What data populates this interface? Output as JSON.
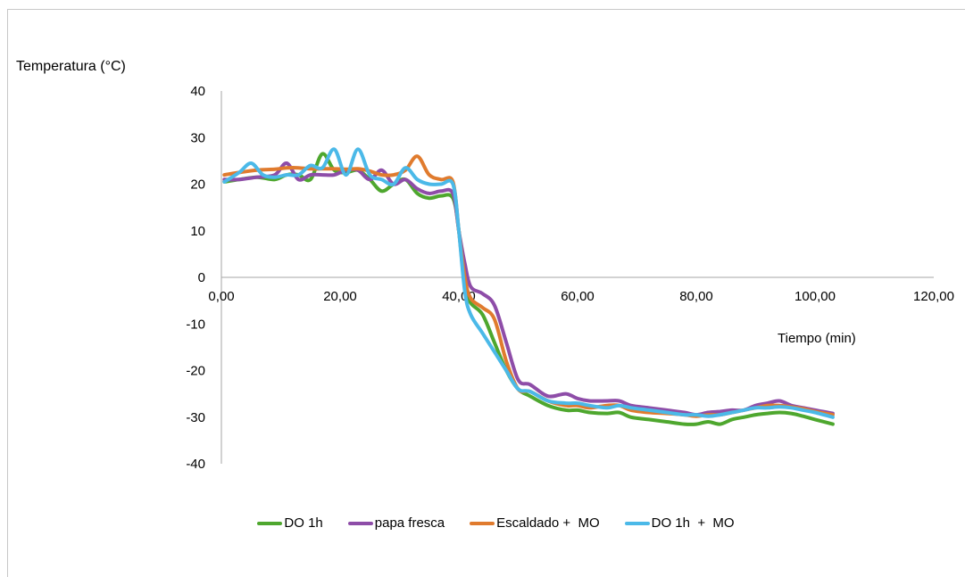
{
  "chart_data": {
    "type": "line",
    "ylabel": "Temperatura (°C)",
    "xlabel": "Tiempo (min)",
    "xlim": [
      0,
      120
    ],
    "ylim": [
      -40,
      40
    ],
    "x_ticks": [
      "0,00",
      "20,00",
      "40,00",
      "60,00",
      "80,00",
      "100,00",
      "120,00"
    ],
    "x_tick_values": [
      0,
      20,
      40,
      60,
      80,
      100,
      120
    ],
    "y_ticks": [
      "40",
      "30",
      "20",
      "10",
      "0",
      "-10",
      "-20",
      "-30",
      "-40"
    ],
    "y_tick_values": [
      40,
      30,
      20,
      10,
      0,
      -10,
      -20,
      -30,
      -40
    ],
    "grid": false,
    "legend_position": "bottom",
    "series": [
      {
        "name": "DO 1h",
        "color": "#4ea72e",
        "x": [
          0.5,
          3,
          6,
          9,
          11,
          13,
          15,
          17,
          19,
          21,
          23,
          25,
          27,
          29,
          31,
          33,
          35,
          37,
          39,
          40,
          41,
          42,
          44,
          46,
          48,
          50,
          52,
          55,
          58,
          60,
          62,
          65,
          67,
          69,
          72,
          75,
          78,
          80,
          82,
          84,
          86,
          88,
          90,
          92,
          94,
          96,
          98,
          100,
          103
        ],
        "y": [
          20.5,
          21,
          21.5,
          21,
          22,
          22,
          21,
          26.5,
          23,
          22.5,
          23,
          21,
          18.5,
          20,
          21,
          18,
          17,
          17.5,
          17,
          10,
          -2,
          -5.5,
          -8,
          -14,
          -20,
          -24,
          -25.5,
          -27.5,
          -28.5,
          -28.5,
          -29,
          -29.2,
          -29,
          -30,
          -30.5,
          -31,
          -31.5,
          -31.5,
          -31,
          -31.5,
          -30.5,
          -30,
          -29.5,
          -29.2,
          -29,
          -29.2,
          -29.8,
          -30.5,
          -31.5
        ]
      },
      {
        "name": "papa fresca",
        "color": "#8e4da8",
        "x": [
          0.5,
          3,
          6,
          9,
          11,
          13,
          15,
          17,
          19,
          21,
          23,
          25,
          27,
          29,
          31,
          33,
          35,
          37,
          39,
          40,
          41,
          42,
          44,
          46,
          48,
          50,
          52,
          55,
          58,
          60,
          62,
          65,
          67,
          69,
          72,
          75,
          78,
          80,
          82,
          84,
          86,
          88,
          90,
          92,
          94,
          96,
          98,
          100,
          103
        ],
        "y": [
          21,
          21,
          21.5,
          22,
          24.5,
          21,
          22,
          22,
          22,
          23,
          23,
          21,
          23,
          20,
          21,
          19,
          18,
          18.5,
          18,
          10,
          3,
          -2,
          -3.5,
          -6,
          -14,
          -22,
          -23,
          -25.5,
          -25,
          -26,
          -26.5,
          -26.5,
          -26.5,
          -27.5,
          -28,
          -28.5,
          -29,
          -29.5,
          -29,
          -28.8,
          -28.5,
          -28.5,
          -27.5,
          -27,
          -26.5,
          -27.5,
          -28,
          -28.5,
          -29.2
        ]
      },
      {
        "name": "Escaldado +  MO",
        "color": "#e07b2e",
        "x": [
          0.5,
          3,
          6,
          9,
          11,
          13,
          15,
          17,
          19,
          21,
          23,
          25,
          27,
          29,
          31,
          33,
          35,
          37,
          39,
          40,
          41,
          42,
          44,
          46,
          48,
          50,
          52,
          55,
          58,
          60,
          62,
          65,
          67,
          69,
          72,
          75,
          78,
          80,
          82,
          84,
          86,
          88,
          90,
          92,
          94,
          96,
          98,
          100,
          103
        ],
        "y": [
          22,
          22.5,
          23,
          23.2,
          23.5,
          23.5,
          23.3,
          23.3,
          23.3,
          23.2,
          23.3,
          22.8,
          22,
          22,
          23,
          26,
          22,
          21,
          20.5,
          10,
          0,
          -4.5,
          -6.5,
          -9,
          -18,
          -24,
          -24.5,
          -26.5,
          -27.5,
          -27.5,
          -28,
          -27.5,
          -27.5,
          -28.5,
          -29,
          -29.2,
          -29.5,
          -29.8,
          -29.5,
          -29.5,
          -29,
          -28.5,
          -28,
          -27.5,
          -27.5,
          -27.8,
          -28.2,
          -28.8,
          -29.5
        ]
      },
      {
        "name": "DO 1h  +  MO",
        "color": "#4bb9e8",
        "x": [
          0.5,
          3,
          5,
          7,
          9,
          11,
          13,
          15,
          17,
          19,
          21,
          23,
          25,
          27,
          29,
          31,
          33,
          35,
          37,
          39,
          40,
          41,
          42,
          44,
          46,
          48,
          50,
          52,
          55,
          58,
          60,
          62,
          65,
          67,
          69,
          72,
          75,
          78,
          80,
          82,
          84,
          86,
          88,
          90,
          92,
          94,
          96,
          98,
          100,
          103
        ],
        "y": [
          20.5,
          22.5,
          24.5,
          22,
          21.5,
          22,
          22,
          24,
          23.5,
          27.5,
          22,
          27.5,
          22,
          21,
          20,
          23.5,
          21,
          20,
          20,
          20,
          10,
          -3,
          -8,
          -12,
          -16,
          -20,
          -24,
          -24.5,
          -26.5,
          -27,
          -27,
          -27.5,
          -28,
          -27.5,
          -28,
          -28.5,
          -29,
          -29.5,
          -29.5,
          -29.8,
          -29.5,
          -29,
          -28.5,
          -28,
          -28,
          -27.8,
          -28,
          -28.5,
          -29,
          -30
        ]
      }
    ]
  }
}
